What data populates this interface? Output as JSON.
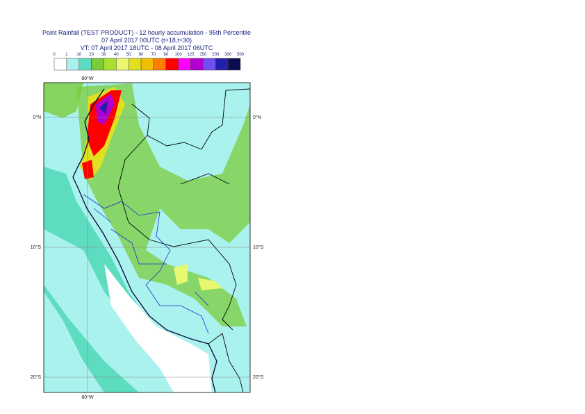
{
  "title": [
    "Point Rainfall (TEST PRODUCT) - 12 hourly accumulation - 95th Percentile",
    "07 April 2017 00UTC (t+18,t+30)",
    "VT: 07 April 2017 18UTC - 08 April 2017 06UTC"
  ],
  "legend": {
    "labels": [
      0,
      1,
      10,
      20,
      30,
      40,
      50,
      60,
      70,
      80,
      100,
      125,
      150,
      200,
      300,
      500
    ],
    "colors": [
      "#ffffff",
      "#aaf2ee",
      "#5edcc0",
      "#7ccc3c",
      "#a8e030",
      "#e8f870",
      "#e0e020",
      "#f0c000",
      "#ff8000",
      "#ff0000",
      "#ff00ff",
      "#b000d0",
      "#7050f0",
      "#2020a8",
      "#0c0c50"
    ]
  },
  "map": {
    "lat_labels": [
      "0°N",
      "10°S",
      "20°S"
    ],
    "lon_label": "80°W"
  }
}
